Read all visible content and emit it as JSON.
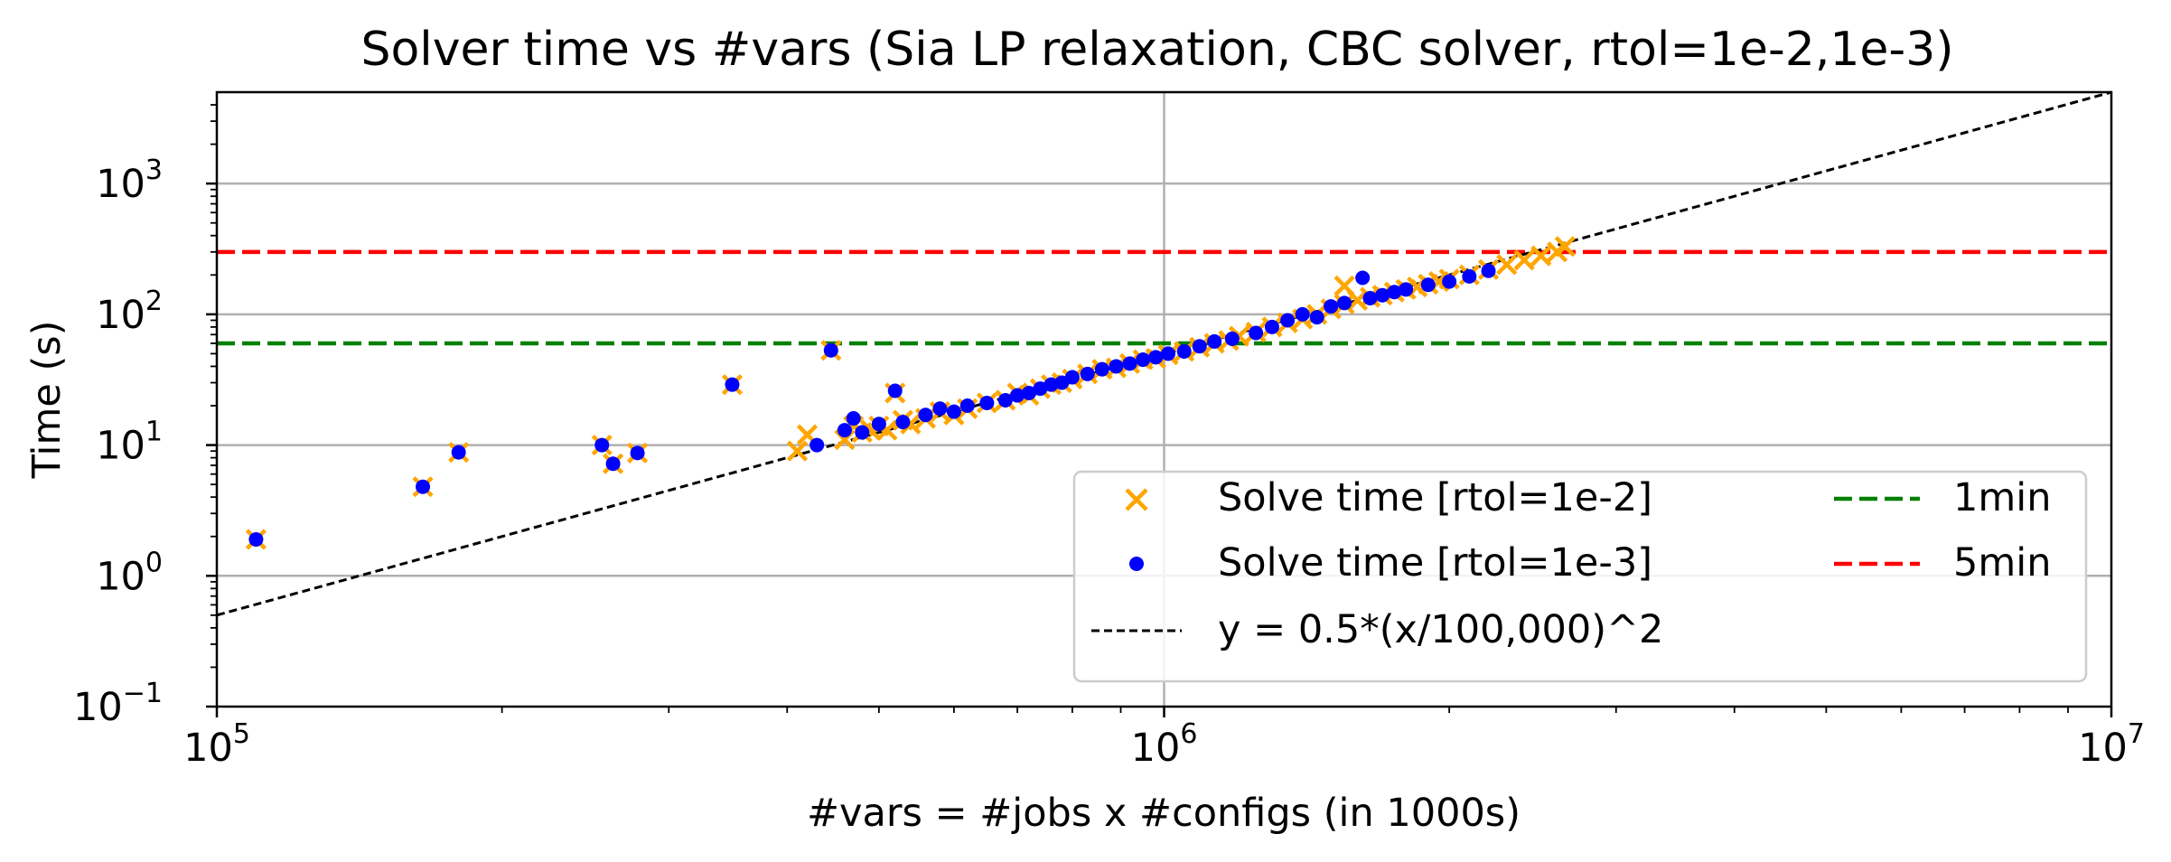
{
  "chart_data": {
    "type": "scatter",
    "title": "Solver time vs #vars (Sia LP relaxation, CBC solver, rtol=1e-2,1e-3)",
    "xlabel": "#vars = #jobs x #configs (in 1000s)",
    "ylabel": "Time (s)",
    "x_scale": "log",
    "y_scale": "log",
    "xlim": [
      100000,
      10000000
    ],
    "ylim": [
      0.1,
      5000
    ],
    "x_ticks": [
      {
        "value": 100000,
        "base": "10",
        "exp": "5"
      },
      {
        "value": 1000000,
        "base": "10",
        "exp": "6"
      },
      {
        "value": 10000000,
        "base": "10",
        "exp": "7"
      }
    ],
    "y_ticks": [
      {
        "value": 0.1,
        "base": "10",
        "exp": "−1"
      },
      {
        "value": 1,
        "base": "10",
        "exp": "0"
      },
      {
        "value": 10,
        "base": "10",
        "exp": "1"
      },
      {
        "value": 100,
        "base": "10",
        "exp": "2"
      },
      {
        "value": 1000,
        "base": "10",
        "exp": "3"
      }
    ],
    "grid": true,
    "legend_position": "lower-right",
    "series": [
      {
        "name": "Solve time [rtol=1e-2]",
        "marker": "x",
        "color": "#ffa500",
        "points": [
          [
            110000,
            1.9
          ],
          [
            165000,
            4.8
          ],
          [
            180000,
            8.8
          ],
          [
            255000,
            10.0
          ],
          [
            262000,
            7.2
          ],
          [
            278000,
            8.7
          ],
          [
            350000,
            29.0
          ],
          [
            445000,
            53.0
          ],
          [
            520000,
            25.0
          ],
          [
            410000,
            9.0
          ],
          [
            420000,
            12.0
          ],
          [
            460000,
            11.0
          ],
          [
            470000,
            14.0
          ],
          [
            480000,
            12.5
          ],
          [
            490000,
            13.0
          ],
          [
            500000,
            14.0
          ],
          [
            510000,
            13.0
          ],
          [
            530000,
            15.5
          ],
          [
            540000,
            14.5
          ],
          [
            560000,
            16.0
          ],
          [
            580000,
            18.0
          ],
          [
            600000,
            17.0
          ],
          [
            620000,
            19.0
          ],
          [
            650000,
            21.0
          ],
          [
            680000,
            22.0
          ],
          [
            700000,
            25.0
          ],
          [
            720000,
            24.0
          ],
          [
            740000,
            27.0
          ],
          [
            760000,
            29.0
          ],
          [
            780000,
            30.0
          ],
          [
            800000,
            32.0
          ],
          [
            830000,
            35.0
          ],
          [
            860000,
            38.0
          ],
          [
            890000,
            39.0
          ],
          [
            920000,
            42.0
          ],
          [
            950000,
            45.0
          ],
          [
            980000,
            46.0
          ],
          [
            1010000,
            49.0
          ],
          [
            1050000,
            52.0
          ],
          [
            1090000,
            56.0
          ],
          [
            1130000,
            60.0
          ],
          [
            1170000,
            63.0
          ],
          [
            1200000,
            68.0
          ],
          [
            1250000,
            73.0
          ],
          [
            1300000,
            80.0
          ],
          [
            1350000,
            86.0
          ],
          [
            1400000,
            92.0
          ],
          [
            1450000,
            100.0
          ],
          [
            1500000,
            110.0
          ],
          [
            1550000,
            120.0
          ],
          [
            1600000,
            128.0
          ],
          [
            1550000,
            165.0
          ],
          [
            1650000,
            135.0
          ],
          [
            1700000,
            140.0
          ],
          [
            1750000,
            148.0
          ],
          [
            1800000,
            155.0
          ],
          [
            1850000,
            162.0
          ],
          [
            1900000,
            170.0
          ],
          [
            1950000,
            178.0
          ],
          [
            2000000,
            186.0
          ],
          [
            2100000,
            200.0
          ],
          [
            2200000,
            220.0
          ],
          [
            2300000,
            240.0
          ],
          [
            2400000,
            260.0
          ],
          [
            2500000,
            280.0
          ],
          [
            2600000,
            300.0
          ],
          [
            2650000,
            330.0
          ]
        ]
      },
      {
        "name": "Solve time [rtol=1e-3]",
        "marker": "dot",
        "color": "#0000ff",
        "points": [
          [
            110000,
            1.9
          ],
          [
            165000,
            4.8
          ],
          [
            180000,
            8.8
          ],
          [
            255000,
            10.0
          ],
          [
            262000,
            7.2
          ],
          [
            278000,
            8.7
          ],
          [
            350000,
            29.0
          ],
          [
            445000,
            53.0
          ],
          [
            520000,
            26.0
          ],
          [
            430000,
            10.0
          ],
          [
            460000,
            13.0
          ],
          [
            470000,
            16.0
          ],
          [
            480000,
            12.5
          ],
          [
            500000,
            14.5
          ],
          [
            530000,
            15.0
          ],
          [
            560000,
            17.0
          ],
          [
            580000,
            19.0
          ],
          [
            600000,
            18.0
          ],
          [
            620000,
            20.0
          ],
          [
            650000,
            21.0
          ],
          [
            680000,
            22.0
          ],
          [
            700000,
            24.0
          ],
          [
            720000,
            25.0
          ],
          [
            740000,
            27.0
          ],
          [
            760000,
            29.0
          ],
          [
            780000,
            30.0
          ],
          [
            800000,
            33.0
          ],
          [
            830000,
            35.0
          ],
          [
            860000,
            38.0
          ],
          [
            890000,
            40.0
          ],
          [
            920000,
            42.0
          ],
          [
            950000,
            45.0
          ],
          [
            980000,
            47.0
          ],
          [
            1010000,
            50.0
          ],
          [
            1050000,
            52.0
          ],
          [
            1090000,
            57.0
          ],
          [
            1130000,
            62.0
          ],
          [
            1180000,
            65.0
          ],
          [
            1250000,
            72.0
          ],
          [
            1300000,
            80.0
          ],
          [
            1350000,
            90.0
          ],
          [
            1400000,
            100.0
          ],
          [
            1450000,
            95.0
          ],
          [
            1500000,
            115.0
          ],
          [
            1550000,
            122.0
          ],
          [
            1620000,
            190.0
          ],
          [
            1650000,
            133.0
          ],
          [
            1700000,
            140.0
          ],
          [
            1750000,
            148.0
          ],
          [
            1800000,
            155.0
          ],
          [
            1900000,
            168.0
          ],
          [
            2000000,
            178.0
          ],
          [
            2100000,
            195.0
          ],
          [
            2200000,
            215.0
          ]
        ]
      },
      {
        "name": "y = 0.5*(x/100,000)^2",
        "marker": "dashed-line",
        "color": "#000000",
        "function": {
          "coefficient": 0.5,
          "divisor": 100000,
          "exponent": 2
        }
      },
      {
        "name": "1min",
        "marker": "dashed-hline",
        "color": "#008000",
        "y": 60
      },
      {
        "name": "5min",
        "marker": "dashed-hline",
        "color": "#ff0000",
        "y": 300
      }
    ]
  }
}
